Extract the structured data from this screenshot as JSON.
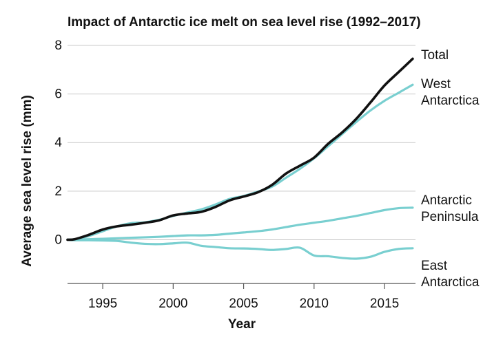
{
  "chart_data": {
    "type": "line",
    "title": "Impact of Antarctic ice melt on sea level rise (1992–2017)",
    "xlabel": "Year",
    "ylabel": "Average sea level rise (mm)",
    "xlim": [
      1992.5,
      2017.2
    ],
    "ylim": [
      -1.8,
      8
    ],
    "x_ticks": [
      1995,
      2000,
      2005,
      2010,
      2015
    ],
    "x_tick_labels": [
      "1995",
      "2000",
      "2005",
      "2010",
      "2015"
    ],
    "y_ticks": [
      0,
      2,
      4,
      6,
      8
    ],
    "y_tick_labels": [
      "0",
      "2",
      "4",
      "6",
      "8"
    ],
    "grid": true,
    "x": [
      1992.5,
      1993,
      1994,
      1995,
      1996,
      1997,
      1998,
      1999,
      2000,
      2001,
      2002,
      2003,
      2004,
      2005,
      2006,
      2007,
      2008,
      2009,
      2010,
      2011,
      2012,
      2013,
      2014,
      2015,
      2016,
      2017
    ],
    "series": [
      {
        "name": "Total",
        "label_lines": [
          "Total"
        ],
        "color": "#111111",
        "values": [
          0.0,
          0.02,
          0.2,
          0.42,
          0.55,
          0.62,
          0.7,
          0.8,
          1.0,
          1.08,
          1.15,
          1.35,
          1.62,
          1.78,
          1.95,
          2.25,
          2.72,
          3.05,
          3.38,
          3.95,
          4.42,
          4.98,
          5.65,
          6.35,
          6.9,
          7.45
        ]
      },
      {
        "name": "West Antarctica",
        "label_lines": [
          "West",
          "Antarctica"
        ],
        "color": "#79cfd0",
        "values": [
          0.0,
          0.02,
          0.15,
          0.35,
          0.55,
          0.68,
          0.72,
          0.82,
          0.98,
          1.12,
          1.25,
          1.45,
          1.68,
          1.8,
          1.98,
          2.18,
          2.55,
          2.92,
          3.35,
          3.85,
          4.35,
          4.85,
          5.32,
          5.72,
          6.05,
          6.38
        ]
      },
      {
        "name": "Antarctic Peninsula",
        "label_lines": [
          "Antarctic",
          "Peninsula"
        ],
        "color": "#79cfd0",
        "values": [
          0.0,
          0.01,
          0.02,
          0.04,
          0.06,
          0.08,
          0.1,
          0.12,
          0.15,
          0.18,
          0.18,
          0.2,
          0.25,
          0.3,
          0.35,
          0.42,
          0.52,
          0.62,
          0.7,
          0.78,
          0.88,
          0.98,
          1.1,
          1.22,
          1.3,
          1.32
        ]
      },
      {
        "name": "East Antarctica",
        "label_lines": [
          "East",
          "Antarctica"
        ],
        "color": "#79cfd0",
        "values": [
          0.0,
          -0.02,
          -0.02,
          -0.03,
          -0.05,
          -0.12,
          -0.17,
          -0.18,
          -0.15,
          -0.12,
          -0.25,
          -0.3,
          -0.35,
          -0.36,
          -0.38,
          -0.42,
          -0.38,
          -0.33,
          -0.65,
          -0.68,
          -0.75,
          -0.78,
          -0.7,
          -0.5,
          -0.38,
          -0.35
        ]
      }
    ]
  }
}
